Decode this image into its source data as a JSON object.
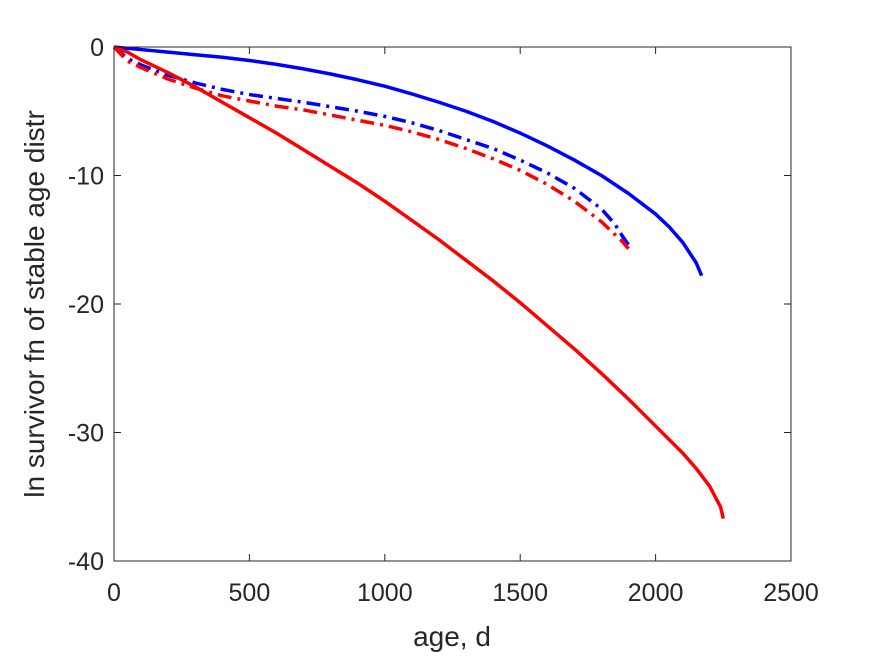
{
  "chart_data": {
    "type": "line",
    "title": "",
    "xlabel": "age, d",
    "ylabel": "ln survivor fn of stable age distr",
    "xlim": [
      0,
      2500
    ],
    "ylim": [
      -40,
      0
    ],
    "xticks": [
      0,
      500,
      1000,
      1500,
      2000,
      2500
    ],
    "yticks": [
      0,
      -10,
      -20,
      -30,
      -40
    ],
    "xtick_labels": [
      "0",
      "500",
      "1000",
      "1500",
      "2000",
      "2500"
    ],
    "ytick_labels": [
      "0",
      "-10",
      "-20",
      "-30",
      "-40"
    ],
    "grid": false,
    "legend": "none",
    "series": [
      {
        "color": "#0000ff",
        "style": "solid",
        "x": [
          0,
          100,
          200,
          300,
          400,
          500,
          600,
          700,
          800,
          900,
          1000,
          1100,
          1200,
          1300,
          1400,
          1500,
          1600,
          1700,
          1800,
          1900,
          2000,
          2050,
          2100,
          2150,
          2170
        ],
        "y": [
          0,
          -0.2,
          -0.4,
          -0.6,
          -0.8,
          -1.05,
          -1.35,
          -1.7,
          -2.1,
          -2.55,
          -3.05,
          -3.65,
          -4.3,
          -5.0,
          -5.8,
          -6.7,
          -7.7,
          -8.8,
          -10.0,
          -11.4,
          -13.0,
          -14.0,
          -15.2,
          -16.8,
          -17.8
        ]
      },
      {
        "color": "#0000ff",
        "style": "dashdot",
        "x": [
          0,
          50,
          100,
          200,
          300,
          400,
          500,
          600,
          700,
          800,
          900,
          1000,
          1100,
          1200,
          1300,
          1400,
          1500,
          1600,
          1700,
          1800,
          1850,
          1880,
          1900
        ],
        "y": [
          0,
          -0.9,
          -1.4,
          -2.2,
          -2.8,
          -3.3,
          -3.7,
          -4.0,
          -4.3,
          -4.65,
          -5.0,
          -5.4,
          -5.9,
          -6.5,
          -7.2,
          -7.9,
          -8.8,
          -9.8,
          -11.0,
          -12.6,
          -13.8,
          -14.8,
          -15.4
        ]
      },
      {
        "color": "#ff0000",
        "style": "dashdot",
        "x": [
          0,
          50,
          100,
          200,
          300,
          400,
          500,
          600,
          700,
          800,
          900,
          1000,
          1100,
          1200,
          1300,
          1400,
          1500,
          1600,
          1700,
          1800,
          1850,
          1880,
          1900
        ],
        "y": [
          0,
          -1.1,
          -1.6,
          -2.5,
          -3.2,
          -3.8,
          -4.2,
          -4.6,
          -4.9,
          -5.3,
          -5.7,
          -6.1,
          -6.6,
          -7.2,
          -7.9,
          -8.7,
          -9.6,
          -10.7,
          -12.0,
          -13.6,
          -14.6,
          -15.2,
          -15.7
        ]
      },
      {
        "color": "#ff0000",
        "style": "solid",
        "x": [
          0,
          50,
          100,
          200,
          300,
          400,
          500,
          600,
          700,
          800,
          900,
          1000,
          1100,
          1200,
          1300,
          1400,
          1500,
          1600,
          1700,
          1800,
          1900,
          2000,
          2100,
          2150,
          2200,
          2220,
          2240,
          2250
        ],
        "y": [
          0,
          -0.4,
          -1.0,
          -2.0,
          -3.1,
          -4.3,
          -5.5,
          -6.7,
          -8.0,
          -9.3,
          -10.6,
          -12.0,
          -13.5,
          -15.0,
          -16.6,
          -18.2,
          -19.9,
          -21.7,
          -23.5,
          -25.4,
          -27.4,
          -29.5,
          -31.6,
          -32.8,
          -34.2,
          -35.0,
          -35.8,
          -36.7
        ]
      }
    ]
  }
}
